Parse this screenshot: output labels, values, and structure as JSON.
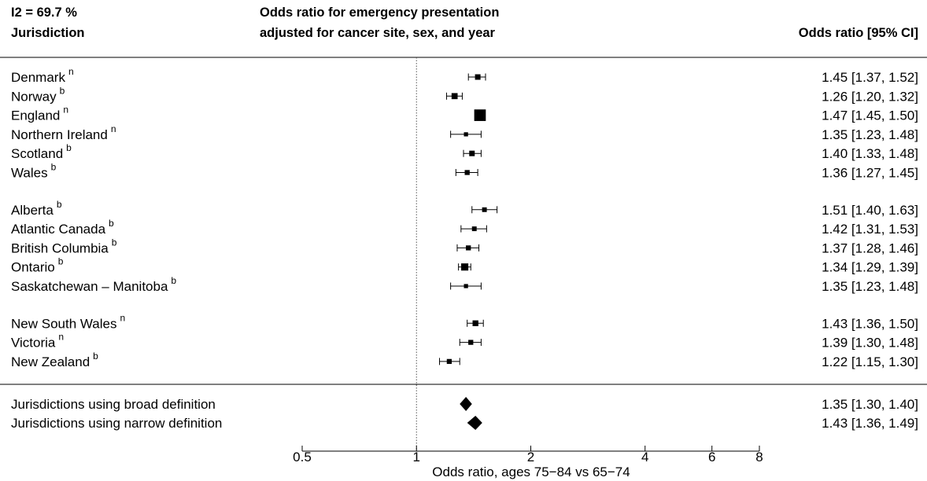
{
  "header": {
    "i2": "I2 =  69.7 %",
    "jurisdiction": "Jurisdiction",
    "title_line1": "Odds ratio for emergency presentation",
    "title_line2": "adjusted for cancer site, sex, and year",
    "ci_header": "Odds ratio [95% CI]"
  },
  "chart_data": {
    "type": "forest",
    "xlabel": "Odds ratio, ages 75−84 vs 65−74",
    "x_scale": "log",
    "xlim": [
      0.5,
      8
    ],
    "x_ticks": [
      0.5,
      1,
      2,
      4,
      6,
      8
    ],
    "x_tick_labels": [
      "0.5",
      "1",
      "2",
      "4",
      "6",
      "8"
    ],
    "reference_line": 1,
    "rows": [
      {
        "label": "Denmark",
        "sup": "n",
        "or": 1.45,
        "lo": 1.37,
        "hi": 1.52,
        "text": "1.45 [1.37, 1.52]",
        "weight": 1.0
      },
      {
        "label": "Norway",
        "sup": "b",
        "or": 1.26,
        "lo": 1.2,
        "hi": 1.32,
        "text": "1.26 [1.20, 1.32]",
        "weight": 1.1
      },
      {
        "label": "England",
        "sup": "n",
        "or": 1.47,
        "lo": 1.45,
        "hi": 1.5,
        "text": "1.47 [1.45, 1.50]",
        "weight": 2.1
      },
      {
        "label": "Northern Ireland",
        "sup": "n",
        "or": 1.35,
        "lo": 1.23,
        "hi": 1.48,
        "text": "1.35 [1.23, 1.48]",
        "weight": 0.75
      },
      {
        "label": "Scotland",
        "sup": "b",
        "or": 1.4,
        "lo": 1.33,
        "hi": 1.48,
        "text": "1.40 [1.33, 1.48]",
        "weight": 1.0
      },
      {
        "label": "Wales",
        "sup": "b",
        "or": 1.36,
        "lo": 1.27,
        "hi": 1.45,
        "text": "1.36 [1.27, 1.45]",
        "weight": 0.9
      },
      {
        "label": "Alberta",
        "sup": "b",
        "or": 1.51,
        "lo": 1.4,
        "hi": 1.63,
        "text": "1.51 [1.40, 1.63]",
        "weight": 0.85
      },
      {
        "label": "Atlantic Canada",
        "sup": "b",
        "or": 1.42,
        "lo": 1.31,
        "hi": 1.53,
        "text": "1.42 [1.31, 1.53]",
        "weight": 0.85
      },
      {
        "label": "British Columbia",
        "sup": "b",
        "or": 1.37,
        "lo": 1.28,
        "hi": 1.46,
        "text": "1.37 [1.28, 1.46]",
        "weight": 0.9
      },
      {
        "label": "Ontario",
        "sup": "b",
        "or": 1.34,
        "lo": 1.29,
        "hi": 1.39,
        "text": "1.34 [1.29, 1.39]",
        "weight": 1.3
      },
      {
        "label": "Saskatchewan – Manitoba",
        "sup": "b",
        "or": 1.35,
        "lo": 1.23,
        "hi": 1.48,
        "text": "1.35 [1.23, 1.48]",
        "weight": 0.75
      },
      {
        "label": "New South Wales",
        "sup": "n",
        "or": 1.43,
        "lo": 1.36,
        "hi": 1.5,
        "text": "1.43 [1.36, 1.50]",
        "weight": 1.05
      },
      {
        "label": "Victoria",
        "sup": "n",
        "or": 1.39,
        "lo": 1.3,
        "hi": 1.48,
        "text": "1.39 [1.30, 1.48]",
        "weight": 0.9
      },
      {
        "label": "New Zealand",
        "sup": "b",
        "or": 1.22,
        "lo": 1.15,
        "hi": 1.3,
        "text": "1.22 [1.15, 1.30]",
        "weight": 0.9
      }
    ],
    "summaries": [
      {
        "label": "Jurisdictions using broad definition",
        "or": 1.35,
        "lo": 1.3,
        "hi": 1.4,
        "text": "1.35 [1.30, 1.40]"
      },
      {
        "label": "Jurisdictions using narrow definition",
        "or": 1.43,
        "lo": 1.36,
        "hi": 1.49,
        "text": "1.43 [1.36, 1.49]"
      }
    ]
  }
}
